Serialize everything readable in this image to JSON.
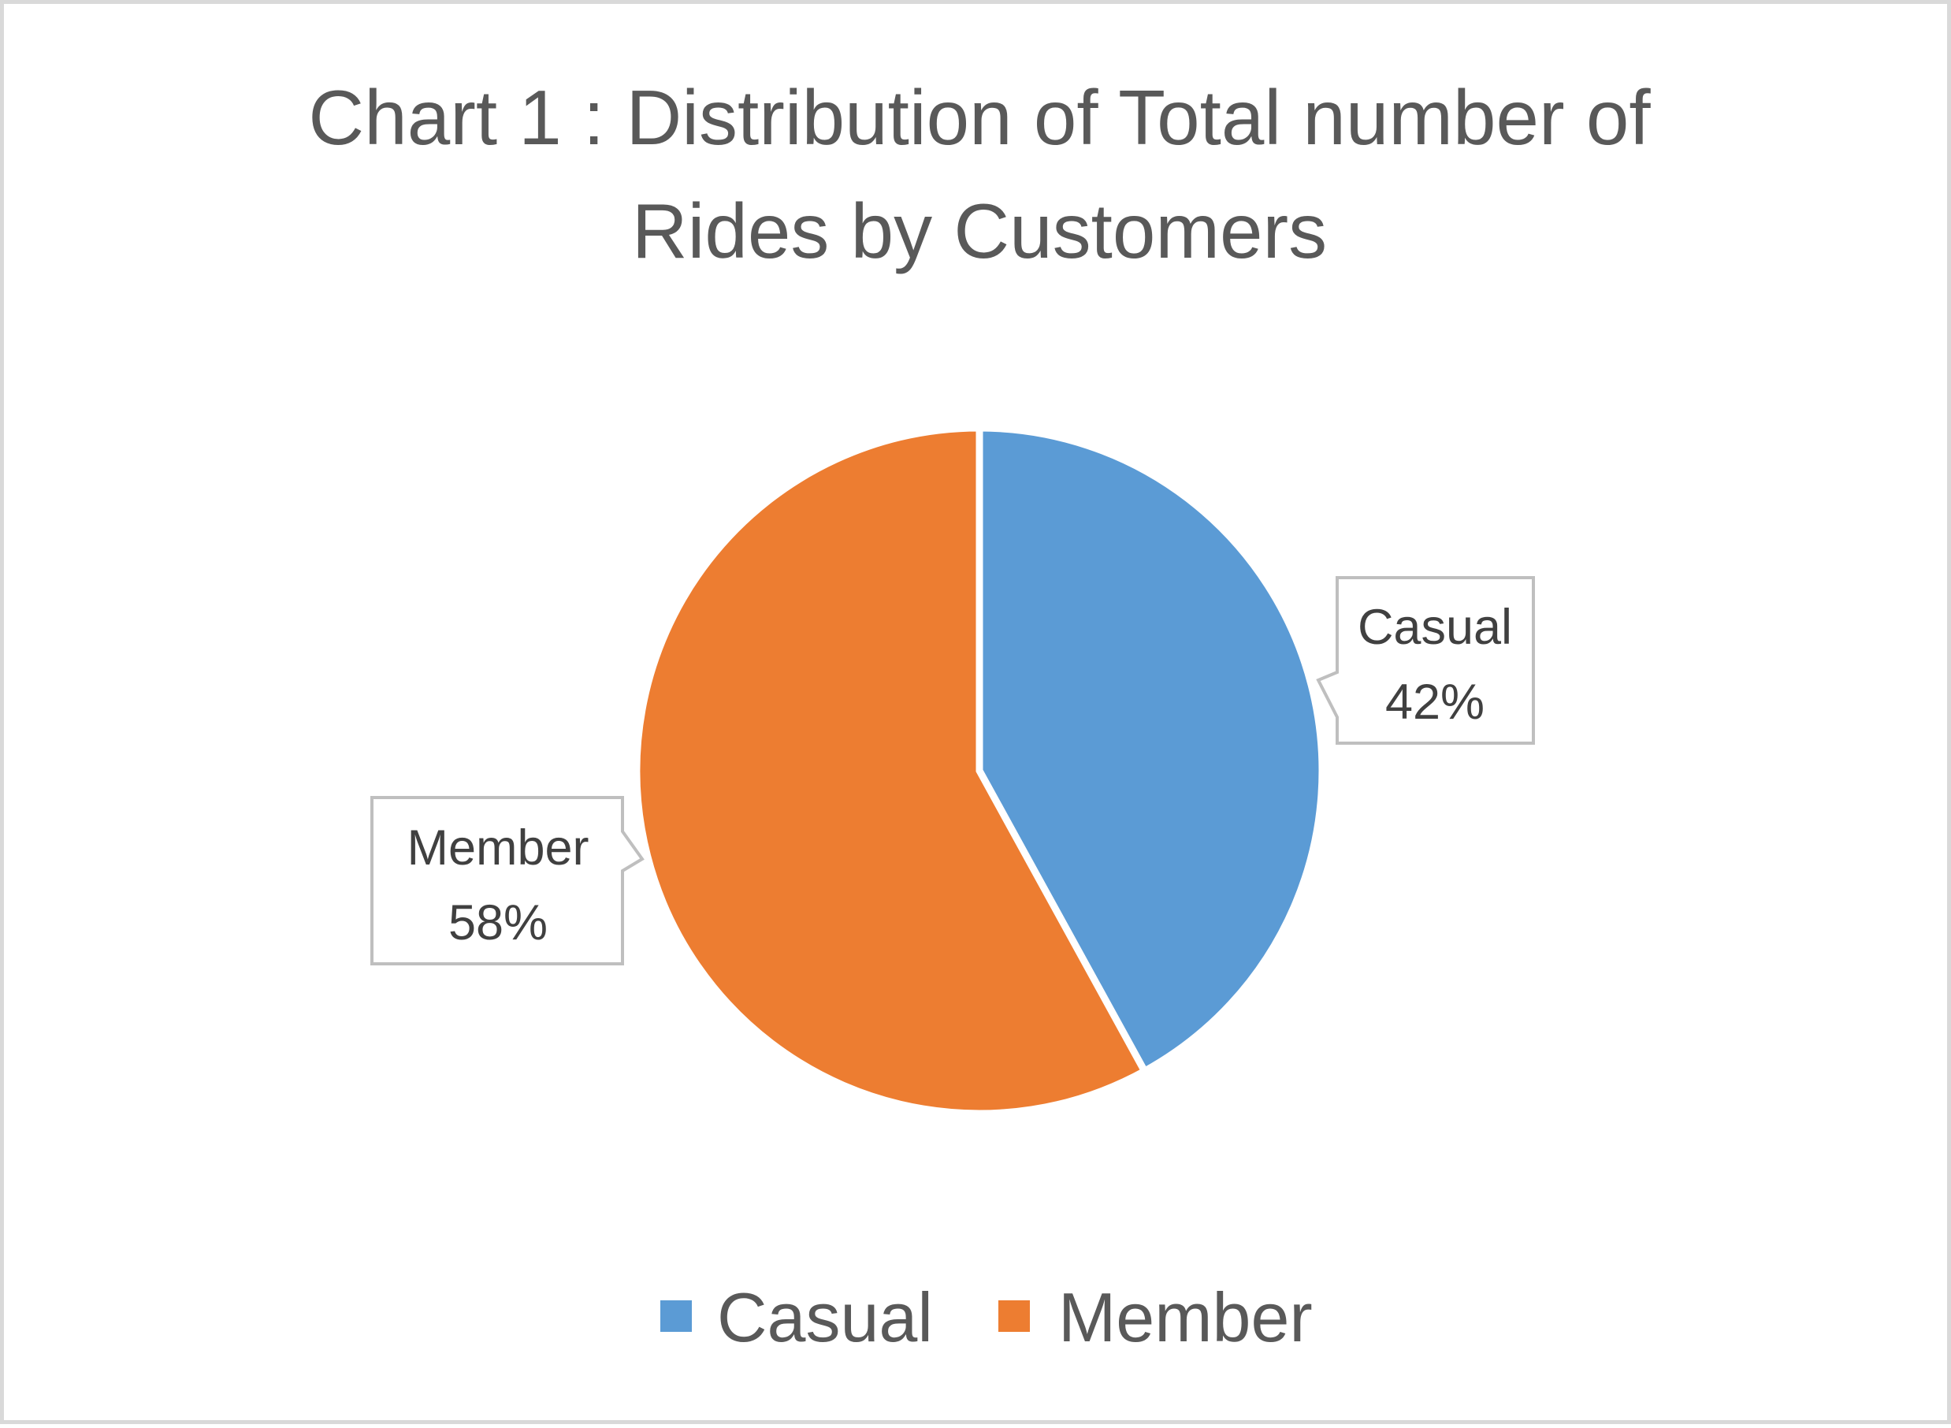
{
  "chart_data": {
    "type": "pie",
    "title_lines": [
      "Chart 1 : Distribution of Total number of",
      "Rides by Customers"
    ],
    "slices": [
      {
        "name": "Casual",
        "value": 42,
        "label": "42%",
        "color": "#5b9bd5"
      },
      {
        "name": "Member",
        "value": 58,
        "label": "58%",
        "color": "#ed7d31"
      }
    ],
    "legend": {
      "position": "bottom",
      "entries": [
        "Casual",
        "Member"
      ]
    }
  }
}
